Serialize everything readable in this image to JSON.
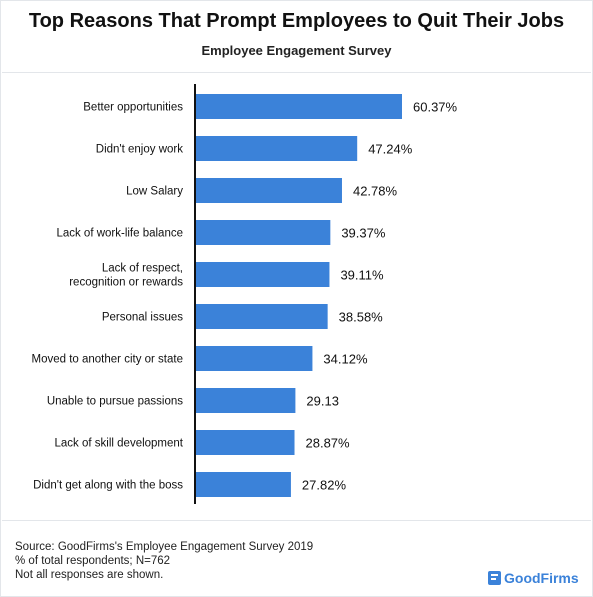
{
  "title": "Top Reasons That Prompt Employees to Quit Their Jobs",
  "subtitle": "Employee Engagement Survey",
  "chart_data": {
    "type": "bar",
    "orientation": "horizontal",
    "bar_color": "#3b82d9",
    "categories": [
      [
        "Better opportunities"
      ],
      [
        "Didn't enjoy work"
      ],
      [
        "Low Salary"
      ],
      [
        "Lack of work-life balance"
      ],
      [
        "Lack of respect,",
        "recognition or rewards"
      ],
      [
        "Personal issues"
      ],
      [
        "Moved to another city or state"
      ],
      [
        "Unable to pursue passions"
      ],
      [
        "Lack of skill development"
      ],
      [
        "Didn't get along with the boss"
      ]
    ],
    "values": [
      60.37,
      47.24,
      42.78,
      39.37,
      39.11,
      38.58,
      34.12,
      29.13,
      28.87,
      27.82
    ],
    "value_labels": [
      "60.37%",
      "47.24%",
      "42.78%",
      "39.37%",
      "39.11%",
      "38.58%",
      "34.12%",
      "29.13",
      "28.87%",
      "27.82%"
    ],
    "xlim": [
      0,
      60.37
    ]
  },
  "footer": {
    "line1": "Source: GoodFirms's Employee Engagement Survey 2019",
    "line2": "% of total respondents; N=762",
    "line3": "Not all responses are shown."
  },
  "logo": {
    "text": "GoodFirms",
    "color": "#3b82d9"
  }
}
